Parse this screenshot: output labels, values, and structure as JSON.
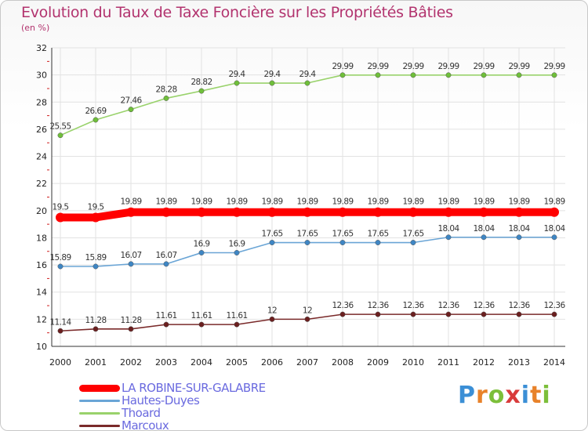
{
  "chart_data": {
    "type": "line",
    "title": "Evolution du Taux de Taxe Foncière sur les Propriétés Bâties",
    "ylabel": "(en %)",
    "xlabel": "",
    "ylim": [
      10,
      32
    ],
    "yticks": [
      10,
      12,
      14,
      16,
      18,
      20,
      22,
      24,
      26,
      28,
      30,
      32
    ],
    "x": [
      "2000",
      "2001",
      "2002",
      "2003",
      "2004",
      "2005",
      "2006",
      "2007",
      "2008",
      "2009",
      "2010",
      "2011",
      "2012",
      "2013",
      "2014"
    ],
    "series": [
      {
        "name": "Thoard",
        "color": "#99d26b",
        "marker": "#6fbf3a",
        "values": [
          25.55,
          26.69,
          27.46,
          28.28,
          28.82,
          29.4,
          29.4,
          29.4,
          29.99,
          29.99,
          29.99,
          29.99,
          29.99,
          29.99,
          29.99
        ],
        "labels": [
          "25.55",
          "26.69",
          "27.46",
          "28.28",
          "28.82",
          "29.4",
          "29.4",
          "29.4",
          "29.99",
          "29.99",
          "29.99",
          "29.99",
          "29.99",
          "29.99",
          "29.99"
        ]
      },
      {
        "name": "LA ROBINE-SUR-GALABRE",
        "color": "#ff0000",
        "marker": "#ff0000",
        "values": [
          19.5,
          19.5,
          19.89,
          19.89,
          19.89,
          19.89,
          19.89,
          19.89,
          19.89,
          19.89,
          19.89,
          19.89,
          19.89,
          19.89,
          19.89
        ],
        "labels": [
          "19.5",
          "19.5",
          "19.89",
          "19.89",
          "19.89",
          "19.89",
          "19.89",
          "19.89",
          "19.89",
          "19.89",
          "19.89",
          "19.89",
          "19.89",
          "19.89",
          "19.89"
        ]
      },
      {
        "name": "Hautes-Duyes",
        "color": "#6aa5d6",
        "marker": "#3e86c4",
        "values": [
          15.89,
          15.89,
          16.07,
          16.07,
          16.9,
          16.9,
          17.65,
          17.65,
          17.65,
          17.65,
          17.65,
          18.04,
          18.04,
          18.04,
          18.04
        ],
        "labels": [
          "15.89",
          "15.89",
          "16.07",
          "16.07",
          "16.9",
          "16.9",
          "17.65",
          "17.65",
          "17.65",
          "17.65",
          "17.65",
          "18.04",
          "18.04",
          "18.04",
          "18.04"
        ]
      },
      {
        "name": "Marcoux",
        "color": "#7a2a2a",
        "marker": "#6b1f1f",
        "values": [
          11.14,
          11.28,
          11.28,
          11.61,
          11.61,
          11.61,
          12,
          12,
          12.36,
          12.36,
          12.36,
          12.36,
          12.36,
          12.36,
          12.36
        ],
        "labels": [
          "11.14",
          "11.28",
          "11.28",
          "11.61",
          "11.61",
          "11.61",
          "12",
          "12",
          "12.36",
          "12.36",
          "12.36",
          "12.36",
          "12.36",
          "12.36",
          "12.36"
        ]
      }
    ],
    "legend_order": [
      "LA ROBINE-SUR-GALABRE",
      "Hautes-Duyes",
      "Thoard",
      "Marcoux"
    ]
  },
  "legend": {
    "items": [
      {
        "label": "LA ROBINE-SUR-GALABRE",
        "color": "#ff0000"
      },
      {
        "label": "Hautes-Duyes",
        "color": "#6aa5d6"
      },
      {
        "label": "Thoard",
        "color": "#99d26b"
      },
      {
        "label": "Marcoux",
        "color": "#7a2a2a"
      }
    ]
  },
  "logo": {
    "text": "Proxiti",
    "letters": [
      "P",
      "r",
      "o",
      "x",
      "i",
      "t",
      "i"
    ],
    "colors": [
      "#3b8fd6",
      "#e8822a",
      "#7cbf3a",
      "#d93b3b",
      "#3b8fd6",
      "#e8822a",
      "#7cbf3a"
    ]
  }
}
